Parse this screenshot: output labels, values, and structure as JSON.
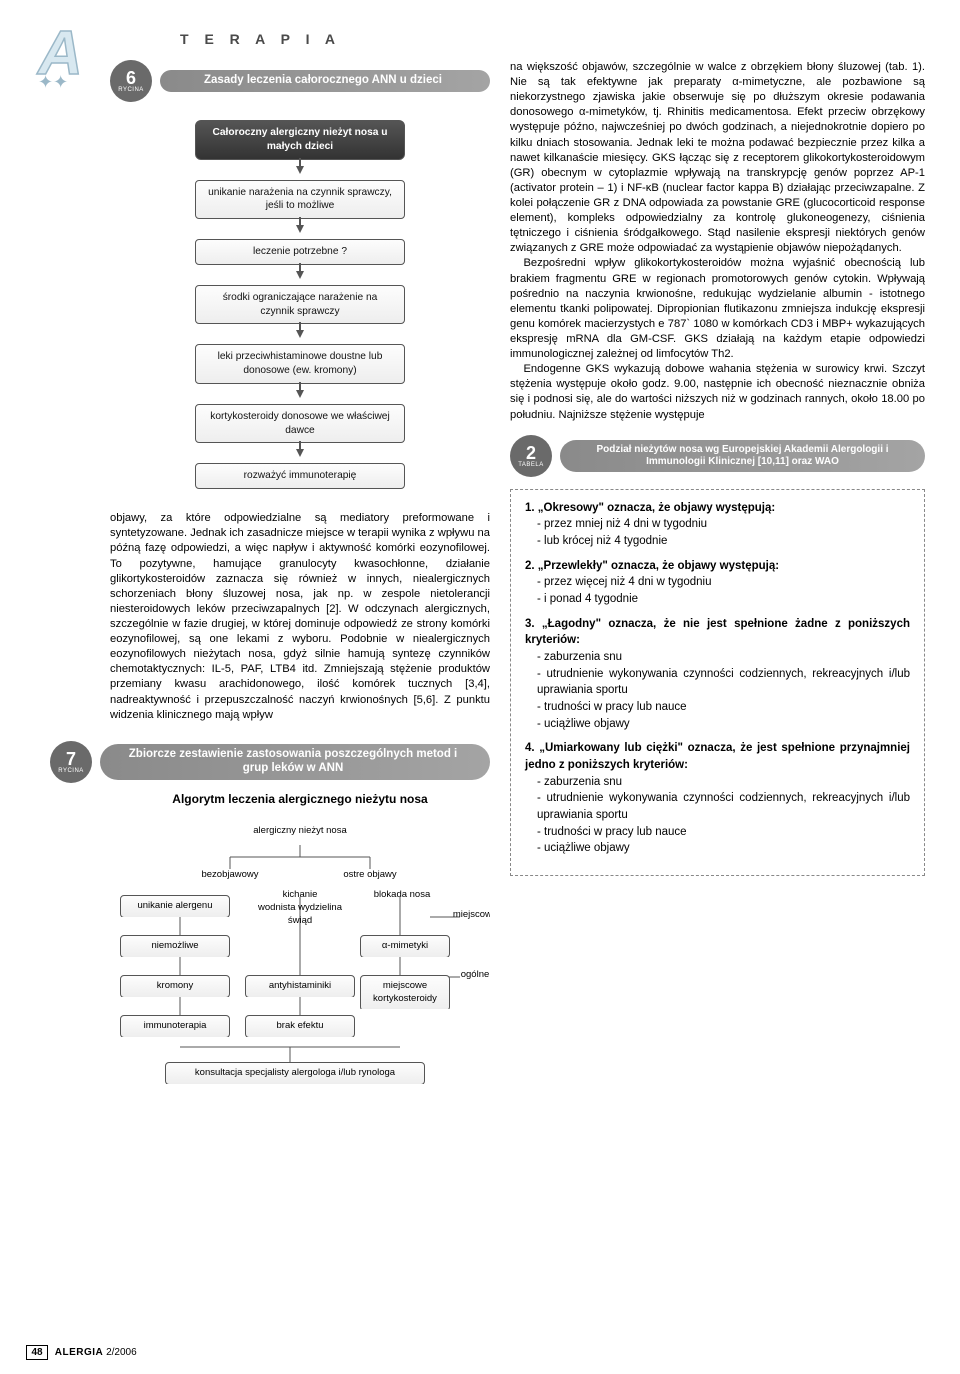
{
  "header": {
    "title": "T E R A P I A"
  },
  "logo": {
    "letter": "A",
    "color_light": "#d8e8f0",
    "color_outline": "#9bb8c8"
  },
  "figure6": {
    "badge_num": "6",
    "badge_label": "RYCINA",
    "title": "Zasady leczenia całorocznego ANN u dzieci",
    "steps": [
      "Całoroczny alergiczny nieżyt nosa u małych dzieci",
      "unikanie narażenia na czynnik sprawczy, jeśli to możliwe",
      "leczenie potrzebne ?",
      "środki ograniczające narażenie na czynnik sprawczy",
      "leki przeciwhistaminowe doustne lub donosowe (ew. kromony)",
      "kortykosteroidy donosowe we właściwej dawce",
      "rozważyć immunoterapię"
    ]
  },
  "left_body": "objawy, za które odpowiedzialne są mediatory preformowane i syntetyzowane. Jednak ich zasadnicze miejsce w terapii wynika z wpływu na późną fazę odpowiedzi, a więc napływ i aktywność komórki eozynofilowej. To pozytywne, hamujące granulocyty kwasochłonne, działanie glikortykosteroidów zaznacza się również w innych, niealergicznych schorzeniach błony śluzowej nosa, jak np. w zespole nietolerancji niesteroidowych leków przeciwzapalnych [2]. W odczynach alergicznych, szczególnie w fazie drugiej, w której dominuje odpowiedź ze strony komórki eozynofilowej, są one lekami z wyboru. Podobnie w niealergicznych eozynofilowych nieżytach nosa, gdyż silnie hamują syntezę czynników chemotaktycznych: IL-5, PAF, LTB4 itd. Zmniejszają stężenie produktów przemiany kwasu arachidonowego, ilość komórek tucznych [3,4], nadreaktywność i przepuszczalność naczyń krwionośnych [5,6]. Z punktu widzenia klinicznego mają wpływ",
  "figure7": {
    "badge_num": "7",
    "badge_label": "RYCINA",
    "title": "Zbiorcze zestawienie zastosowania poszczególnych metod i grup leków w ANN",
    "algo_title": "Algorytm leczenia alergicznego nieżytu nosa",
    "root": "alergiczny nieżyt nosa",
    "branches": {
      "left": "bezobjawowy",
      "right": "ostre objawy"
    },
    "left_chain": [
      "unikanie alergenu",
      "niemożliwe",
      "kromony",
      "immunoterapia"
    ],
    "mid_chain_label": "kichanie\nwodnista wydzielina\nświąd",
    "mid_chain": [
      "antyhistaminiki",
      "brak efektu"
    ],
    "right_label_top": "blokada nosa",
    "right_chain": [
      "α-mimetyki",
      "miejscowe kortykosteroidy"
    ],
    "side_labels": [
      "miejscowe",
      "ogólne"
    ],
    "bottom": "konsultacja specjalisty alergologa i/lub rynologa"
  },
  "right_body_p1": "na większość objawów, szczególnie w walce z obrzękiem błony śluzowej (tab. 1). Nie są tak efektywne jak preparaty α-mimetyczne, ale pozbawione są niekorzystnego zjawiska jakie obserwuje się po dłuższym okresie podawania donosowego α-mimetyków, tj. Rhinitis medicamentosa. Efekt przeciw obrzękowy występuje późno, najwcześniej po dwóch godzinach, a niejednokrotnie dopiero po kilku dniach stosowania. Jednak leki te można podawać bezpiecznie przez kilka a nawet kilkanaście miesięcy. GKS łącząc się z receptorem glikokortykosteroidowym (GR) obecnym w cytoplazmie wpływają na transkrypcję genów poprzez AP-1 (activator protein – 1) i NF-κB (nuclear factor kappa B) działając przeciwzapalne. Z kolei połączenie GR z DNA odpowiada za powstanie GRE (glucocorticoid response element), kompleks odpowiedzialny za kontrolę glukoneogenezy, ciśnienia tętniczego i ciśnienia śródgałkowego. Stąd nasilenie ekspresji niektórych genów związanych z GRE może odpowiadać za wystąpienie objawów niepożądanych.",
  "right_body_p2": "Bezpośredni wpływ glikokortykosteroidów można wyjaśnić obecnością lub brakiem fragmentu GRE w regionach promotorowych genów cytokin. Wpływają pośrednio na naczynia krwionośne, redukując wydzielanie albumin - istotnego elementu tkanki polipowatej. Dipropionian flutikazonu zmniejsza indukcję ekspresji genu komórek macierzystych e 787` 1080 w komórkach CD3 i MBP+ wykazujących ekspresję mRNA dla GM-CSF. GKS działają na każdym etapie odpowiedzi immunologicznej zależnej od limfocytów Th2.",
  "right_body_p3": "Endogenne GKS wykazują dobowe wahania stężenia w surowicy krwi. Szczyt stężenia występuje około godz. 9.00, następnie ich obecność nieznacznie obniża się i podnosi się, ale do wartości niższych niż w godzinach rannych, około 18.00 po południu. Najniższe stężenie występuje",
  "tabela2": {
    "badge_num": "2",
    "badge_label": "TABELA",
    "title": "Podział nieżytów nosa wg Europejskiej Akademii Alergologii i Immunologii Klinicznej [10,11] oraz WAO",
    "items": [
      {
        "lead": "1. „Okresowy\" oznacza, że objawy występują:",
        "subs": [
          "- przez mniej niż 4 dni w tygodniu",
          "- lub krócej niż 4 tygodnie"
        ]
      },
      {
        "lead": "2. „Przewlekły\" oznacza, że objawy występują:",
        "subs": [
          "- przez więcej niż 4 dni w tygodniu",
          "- i ponad 4 tygodnie"
        ]
      },
      {
        "lead": "3. „Łagodny\" oznacza, że nie jest spełnione żadne z poniższych kryteriów:",
        "subs": [
          "- zaburzenia snu",
          "- utrudnienie wykonywania czynności codziennych, rekreacyjnych i/lub uprawiania sportu",
          "- trudności w pracy lub nauce",
          "- uciążliwe objawy"
        ]
      },
      {
        "lead": "4. „Umiarkowany lub ciężki\" oznacza, że jest spełnione przynajmniej jedno z poniższych kryteriów:",
        "subs": [
          "- zaburzenia snu",
          "- utrudnienie wykonywania czynności codziennych, rekreacyjnych i/lub uprawiania sportu",
          "- trudności w pracy lub nauce",
          "- uciążliwe objawy"
        ]
      }
    ]
  },
  "footer": {
    "page": "48",
    "journal": "ALERGIA",
    "issue": "2/2006"
  },
  "colors": {
    "badge_bg": "#6a6a6a",
    "bar_grad_a": "#8a8a8a",
    "bar_grad_b": "#a4a4a4",
    "box_border": "#555555",
    "dash_border": "#888888"
  }
}
